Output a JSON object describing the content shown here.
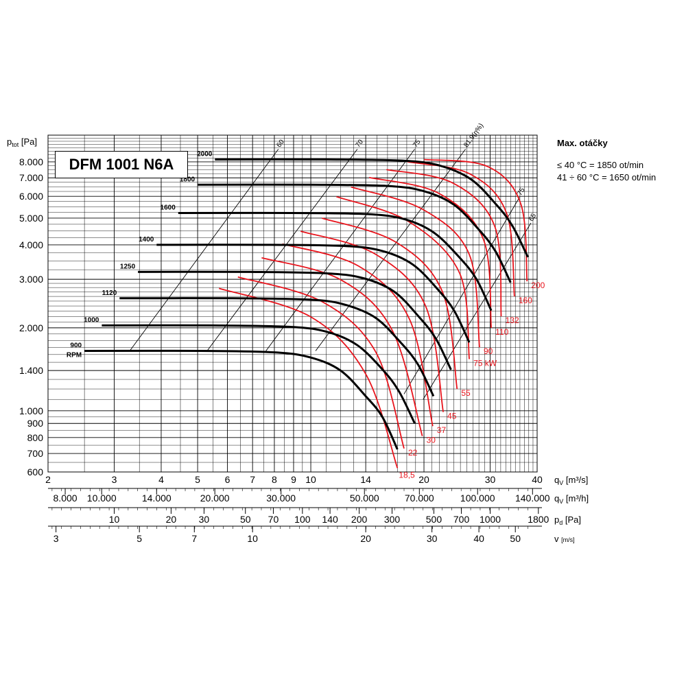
{
  "chart_data": {
    "type": "line",
    "title": "DFM 1001 N6A",
    "ylabel": "p_tot [Pa]",
    "xlabel": "q_V [m³/s]",
    "x_scale": "log",
    "y_scale": "log",
    "xlim": [
      2,
      40
    ],
    "ylim": [
      600,
      10000
    ],
    "y_ticks": [
      600,
      700,
      800,
      900,
      1000,
      1400,
      2000,
      3000,
      4000,
      5000,
      6000,
      7000,
      8000
    ],
    "y_tick_labels": [
      "600",
      "700",
      "800",
      "900",
      "1.000",
      "1.400",
      "2.000",
      "3.000",
      "4.000",
      "5.000",
      "6.000",
      "7.000",
      "8.000"
    ],
    "x_ticks": [
      2,
      3,
      4,
      5,
      6,
      7,
      8,
      9,
      10,
      14,
      20,
      30,
      40
    ],
    "x_axis_label_q": "q",
    "x_axis_label_unit": "[m³/s]",
    "secondary_axes": [
      {
        "label_sym": "q",
        "label_sub": "V",
        "label_unit": "[m³/h]",
        "ticks": [
          "8.000",
          "10.000",
          "14.000",
          "20.000",
          "30.000",
          "50.000",
          "70.000",
          "100.000",
          "140.000"
        ],
        "ticks_at_qv": [
          2.222,
          2.778,
          3.889,
          5.556,
          8.333,
          13.889,
          19.444,
          27.778,
          38.889
        ]
      },
      {
        "label_sym": "p",
        "label_sub": "d",
        "label_unit": "[Pa]",
        "ticks": [
          "10",
          "20",
          "30",
          "50",
          "70",
          "100",
          "140",
          "200",
          "300",
          "500",
          "700",
          "1000",
          "1800"
        ],
        "ticks_at_qv": [
          3.0,
          4.25,
          5.2,
          6.7,
          7.95,
          9.5,
          11.25,
          13.45,
          16.45,
          21.25,
          25.15,
          30.0,
          40.3
        ]
      },
      {
        "label_sym": "v",
        "label_sub": "",
        "label_unit": "[m/s]",
        "ticks": [
          "3",
          "5",
          "7",
          "10",
          "20",
          "30",
          "40",
          "50"
        ],
        "ticks_at_qv": [
          2.1,
          3.5,
          4.9,
          7.0,
          14.0,
          21.0,
          28.0,
          35.0
        ]
      }
    ],
    "speed_curves": [
      {
        "name": "900 RPM",
        "label_line1": "900",
        "label_line2": "RPM",
        "points": [
          [
            2.5,
            1650
          ],
          [
            5,
            1650
          ],
          [
            8,
            1630
          ],
          [
            10,
            1560
          ],
          [
            12,
            1400
          ],
          [
            14,
            1130
          ],
          [
            15.5,
            950
          ],
          [
            17,
            725
          ]
        ]
      },
      {
        "name": "1000",
        "label_line1": "1000",
        "points": [
          [
            2.78,
            2040
          ],
          [
            5.5,
            2040
          ],
          [
            8.9,
            2015
          ],
          [
            11.1,
            1930
          ],
          [
            13.3,
            1730
          ],
          [
            15.6,
            1400
          ],
          [
            17.2,
            1170
          ],
          [
            18.9,
            900
          ]
        ]
      },
      {
        "name": "1120",
        "label_line1": "1120",
        "points": [
          [
            3.1,
            2560
          ],
          [
            6.2,
            2560
          ],
          [
            10,
            2530
          ],
          [
            12.4,
            2420
          ],
          [
            14.9,
            2170
          ],
          [
            17.4,
            1760
          ],
          [
            19.3,
            1470
          ],
          [
            21.2,
            1130
          ]
        ]
      },
      {
        "name": "1250",
        "label_line1": "1250",
        "points": [
          [
            3.47,
            3190
          ],
          [
            6.9,
            3190
          ],
          [
            11.1,
            3150
          ],
          [
            13.9,
            3020
          ],
          [
            16.7,
            2700
          ],
          [
            19.4,
            2190
          ],
          [
            21.5,
            1830
          ],
          [
            23.6,
            1410
          ]
        ]
      },
      {
        "name": "1400",
        "label_line1": "1400",
        "points": [
          [
            3.89,
            4000
          ],
          [
            7.8,
            4000
          ],
          [
            12.4,
            3960
          ],
          [
            15.6,
            3790
          ],
          [
            18.7,
            3390
          ],
          [
            21.8,
            2750
          ],
          [
            24.1,
            2300
          ],
          [
            26.4,
            1770
          ]
        ]
      },
      {
        "name": "1600",
        "label_line1": "1600",
        "points": [
          [
            4.44,
            5220
          ],
          [
            8.9,
            5220
          ],
          [
            14.2,
            5170
          ],
          [
            17.8,
            4950
          ],
          [
            21.3,
            4420
          ],
          [
            24.9,
            3590
          ],
          [
            27.6,
            3000
          ],
          [
            30.2,
            2310
          ]
        ]
      },
      {
        "name": "1800",
        "label_line1": "1800",
        "points": [
          [
            5.0,
            6610
          ],
          [
            10,
            6610
          ],
          [
            16,
            6540
          ],
          [
            20,
            6260
          ],
          [
            24,
            5600
          ],
          [
            28,
            4540
          ],
          [
            31,
            3790
          ],
          [
            34,
            2920
          ]
        ]
      },
      {
        "name": "2000",
        "label_line1": "2000",
        "points": [
          [
            5.56,
            8160
          ],
          [
            11.1,
            8160
          ],
          [
            17.8,
            8070
          ],
          [
            22.2,
            7730
          ],
          [
            26.7,
            6910
          ],
          [
            31.1,
            5610
          ],
          [
            34.4,
            4680
          ],
          [
            37.8,
            3610
          ]
        ]
      }
    ],
    "power_curves": [
      {
        "label": "18,5",
        "points": [
          [
            5.7,
            2780
          ],
          [
            10,
            2190
          ],
          [
            14,
            1360
          ],
          [
            17,
            620
          ]
        ]
      },
      {
        "label": "22",
        "points": [
          [
            6.4,
            3060
          ],
          [
            10.7,
            2490
          ],
          [
            14.9,
            1630
          ],
          [
            17.7,
            730
          ]
        ]
      },
      {
        "label": "30",
        "points": [
          [
            7.4,
            3590
          ],
          [
            12,
            2990
          ],
          [
            16.5,
            1950
          ],
          [
            19.8,
            810
          ]
        ]
      },
      {
        "label": "37",
        "points": [
          [
            8.4,
            4030
          ],
          [
            13.4,
            3350
          ],
          [
            18.3,
            2150
          ],
          [
            21.1,
            880
          ]
        ]
      },
      {
        "label": "45",
        "points": [
          [
            9.4,
            4480
          ],
          [
            14.8,
            3710
          ],
          [
            20.2,
            2400
          ],
          [
            22.5,
            990
          ]
        ]
      },
      {
        "label": "55",
        "points": [
          [
            10.7,
            5000
          ],
          [
            16.8,
            4100
          ],
          [
            22.4,
            2700
          ],
          [
            24.5,
            1200
          ]
        ]
      },
      {
        "label": "75 kW",
        "points": [
          [
            11.7,
            5980
          ],
          [
            18.2,
            4860
          ],
          [
            24.9,
            3150
          ],
          [
            26.4,
            1540
          ]
        ]
      },
      {
        "label": "90",
        "points": [
          [
            12.8,
            6480
          ],
          [
            19.8,
            5390
          ],
          [
            26.4,
            3690
          ],
          [
            28.1,
            1700
          ]
        ]
      },
      {
        "label": "110",
        "points": [
          [
            14.3,
            7020
          ],
          [
            21.9,
            6150
          ],
          [
            28.8,
            4180
          ],
          [
            30.2,
            2000
          ]
        ]
      },
      {
        "label": "132",
        "points": [
          [
            15.9,
            7500
          ],
          [
            23.9,
            6700
          ],
          [
            30.9,
            4640
          ],
          [
            32.1,
            2200
          ]
        ]
      },
      {
        "label": "160",
        "points": [
          [
            18.1,
            8000
          ],
          [
            26.5,
            7230
          ],
          [
            33.2,
            5190
          ],
          [
            34.8,
            2600
          ]
        ]
      },
      {
        "label": "200",
        "points": [
          [
            20.0,
            8160
          ],
          [
            29.5,
            7700
          ],
          [
            36.2,
            5630
          ],
          [
            37.6,
            2950
          ]
        ]
      }
    ],
    "efficiency_lines": [
      {
        "label": "60",
        "points": [
          [
            3.3,
            1650
          ],
          [
            8.2,
            8900
          ]
        ]
      },
      {
        "label": "70",
        "points": [
          [
            5.3,
            1650
          ],
          [
            13.3,
            8900
          ]
        ]
      },
      {
        "label": "75",
        "points": [
          [
            7.6,
            1650
          ],
          [
            18.9,
            8900
          ]
        ]
      },
      {
        "label": "81,9(η%)",
        "points": [
          [
            10.3,
            1650
          ],
          [
            25.8,
            8900
          ]
        ]
      },
      {
        "label": "75",
        "points": [
          [
            17.7,
            1150
          ],
          [
            35.9,
            5950
          ]
        ]
      },
      {
        "label": "65",
        "points": [
          [
            19.9,
            1100
          ],
          [
            38.5,
            4800
          ]
        ]
      }
    ],
    "colors": {
      "speed": "#000000",
      "power": "#e8141c",
      "grid": "#000000"
    }
  },
  "notes": {
    "header": "Max. otáčky",
    "line1": "≤ 40 °C = 1850 ot/min",
    "line2": "41 ÷ 60 °C = 1650 ot/min"
  }
}
